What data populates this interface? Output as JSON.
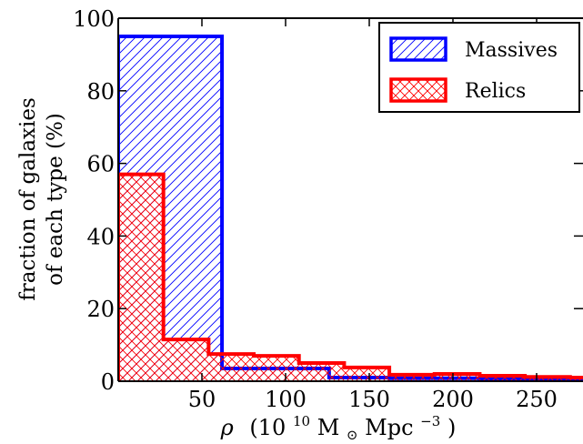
{
  "chart_data": {
    "type": "histogram",
    "ylabel_line1": "fraction of galaxies",
    "ylabel_line2": "of each type (%)",
    "xlabel_main": "ρ",
    "xlabel_units": {
      "open": "(10",
      "exp": "10",
      "msun": " M",
      "sun_sub": "⊙",
      "mpc": " Mpc",
      "mpc_exp": "−3",
      "close": ")"
    },
    "xlim": [
      0,
      290
    ],
    "ylim": [
      0,
      100
    ],
    "x_ticks": [
      50,
      100,
      150,
      200,
      250
    ],
    "y_ticks": [
      0,
      20,
      40,
      60,
      80,
      100
    ],
    "grid": false,
    "legend_position": "top-right",
    "series": [
      {
        "name": "Massives",
        "color": "#0000ff",
        "hatch": "diagonal",
        "edges": [
          0,
          62,
          126,
          162,
          216,
          290
        ],
        "values": [
          95,
          3.5,
          1.0,
          0.8,
          0.5
        ]
      },
      {
        "name": "Relics",
        "color": "#ff0000",
        "hatch": "crosshatch",
        "edges": [
          0,
          27,
          54,
          81,
          108,
          135,
          162,
          189,
          216,
          243,
          270,
          290
        ],
        "values": [
          57,
          11.5,
          7.5,
          7.0,
          5.0,
          3.8,
          1.8,
          2.0,
          1.5,
          1.2,
          1.0
        ]
      }
    ]
  }
}
